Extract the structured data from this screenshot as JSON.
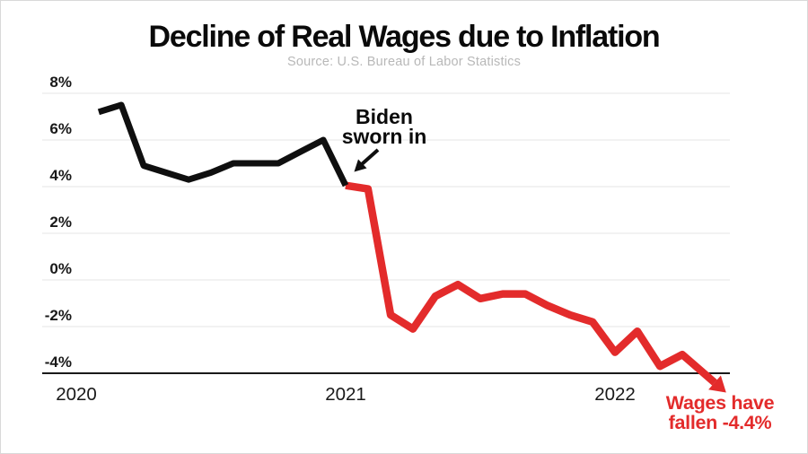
{
  "title": "Decline of Real Wages due to Inflation",
  "subtitle": "Source: U.S. Bureau of Labor Statistics",
  "annotation_biden": {
    "line1": "Biden",
    "line2": "sworn in"
  },
  "annotation_wages": {
    "line1": "Wages have",
    "line2": "fallen -4.4%"
  },
  "colors": {
    "red": "#e32b2b",
    "line_black": "#0f0f0f",
    "grid": "#eaeaea",
    "axis": "#1a1a1a",
    "tick_text": "#191919",
    "subtitle_gray": "#b8b8b8",
    "background": "#ffffff"
  },
  "chart_data": {
    "type": "line",
    "title": "Decline of Real Wages due to Inflation",
    "subtitle": "Source: U.S. Bureau of Labor Statistics",
    "xlabel": "",
    "ylabel": "",
    "grid": true,
    "ylim": [
      -4.6,
      8.4
    ],
    "y_ticks": [
      {
        "label": "8%",
        "value": 8
      },
      {
        "label": "6%",
        "value": 6
      },
      {
        "label": "4%",
        "value": 4
      },
      {
        "label": "2%",
        "value": 2
      },
      {
        "label": "0%",
        "value": 0
      },
      {
        "label": "-2%",
        "value": -2
      },
      {
        "label": "-4%",
        "value": -4
      }
    ],
    "x_ticks": [
      {
        "label": "2020",
        "year": 2020
      },
      {
        "label": "2021",
        "year": 2021
      },
      {
        "label": "2022",
        "year": 2022
      }
    ],
    "series": [
      {
        "name": "real-wages-post-biden",
        "color": "#e32b2b",
        "width": 8.5,
        "arrow_end": true,
        "points": [
          [
            "Jan 2021",
            2021.0,
            4.05
          ],
          [
            "Feb 2021",
            2021.083,
            3.9
          ],
          [
            "Mar 2021",
            2021.167,
            -1.5
          ],
          [
            "Apr 2021",
            2021.25,
            -2.1
          ],
          [
            "May 2021",
            2021.333,
            -0.7
          ],
          [
            "Jun 2021",
            2021.417,
            -0.2
          ],
          [
            "Jul 2021",
            2021.5,
            -0.8
          ],
          [
            "Aug 2021",
            2021.583,
            -0.6
          ],
          [
            "Sep 2021",
            2021.667,
            -0.6
          ],
          [
            "Oct 2021",
            2021.75,
            -1.1
          ],
          [
            "Nov 2021",
            2021.833,
            -1.5
          ],
          [
            "Dec 2021",
            2021.917,
            -1.8
          ],
          [
            "Jan 2022",
            2022.0,
            -3.1
          ],
          [
            "Feb 2022",
            2022.083,
            -2.2
          ],
          [
            "Mar 2022",
            2022.167,
            -3.7
          ],
          [
            "Apr 2022",
            2022.25,
            -3.2
          ],
          [
            "May 2022",
            2022.37,
            -4.4
          ]
        ]
      },
      {
        "name": "real-wages-pre-biden",
        "color": "#0f0f0f",
        "width": 7,
        "arrow_end": false,
        "points": [
          [
            "Feb 2020",
            2020.083,
            7.2
          ],
          [
            "Mar 2020",
            2020.167,
            7.5
          ],
          [
            "Apr 2020",
            2020.25,
            4.9
          ],
          [
            "May 2020",
            2020.333,
            4.6
          ],
          [
            "Jun 2020",
            2020.417,
            4.3
          ],
          [
            "Jul 2020",
            2020.5,
            4.6
          ],
          [
            "Aug 2020",
            2020.583,
            5.0
          ],
          [
            "Sep 2020",
            2020.667,
            5.0
          ],
          [
            "Oct 2020",
            2020.75,
            5.0
          ],
          [
            "Nov 2020",
            2020.833,
            5.5
          ],
          [
            "Dec 2020",
            2020.917,
            6.0
          ],
          [
            "Jan 2021",
            2021.0,
            4.05
          ]
        ]
      }
    ]
  }
}
